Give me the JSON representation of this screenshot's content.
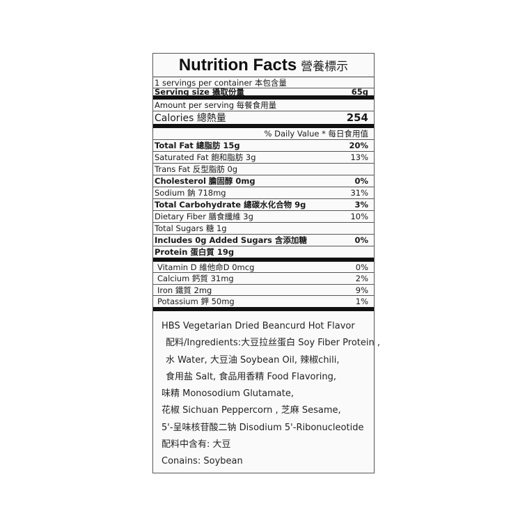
{
  "title": {
    "en": "Nutrition Facts",
    "zh": "營養標示"
  },
  "servings_per_container": "1 servings per container 本包含量",
  "serving_size": {
    "label": "Serving size 攝取份量",
    "value": "65g"
  },
  "amount_per_serving": "Amount per serving 每餐食用量",
  "calories": {
    "label": "Calories 總熱量",
    "value": "254"
  },
  "daily_value_header": "% Daily Value * 每日食用值",
  "nutrients": [
    {
      "label": "Total Fat 總脂肪 15g",
      "dv": "20%"
    },
    {
      "label": "Saturated Fat 飽和脂肪 3g",
      "dv": "13%"
    },
    {
      "label": "Trans Fat 反型脂肪 0g",
      "dv": ""
    },
    {
      "label": "Cholesterol 膽固醇 0mg",
      "dv": "0%"
    },
    {
      "label": "Sodium 鈉 718mg",
      "dv": "31%"
    },
    {
      "label": "Total Carbohydrate 總碳水化合物 9g",
      "dv": "3%"
    },
    {
      "label": "Dietary Fiber 膳食纖維 3g",
      "dv": "10%"
    },
    {
      "label": "Total Sugars 糖 1g",
      "dv": ""
    },
    {
      "label": "Includes 0g Added Sugars 含添加糖",
      "dv": "0%"
    },
    {
      "label": "Protein 蛋白質 19g",
      "dv": ""
    }
  ],
  "minerals": [
    {
      "label": "Vitamin D 維他命D 0mcg",
      "dv": "0%"
    },
    {
      "label": "Calcium 鈣質 31mg",
      "dv": "2%"
    },
    {
      "label": "Iron 鐵質 2mg",
      "dv": "9%"
    },
    {
      "label": "Potassium 鉀 50mg",
      "dv": "1%"
    }
  ],
  "ingredients": [
    "HBS Vegetarian Dried Beancurd Hot Flavor",
    "配料/Ingredients:大豆拉丝蛋白 Soy Fiber Protein ,",
    "水 Water, 大豆油 Soybean Oil, 辣椒chili,",
    "食用盐 Salt, 食品用香精 Food Flavoring,",
    "味精 Monosodium Glutamate,",
    "花椒 Sichuan  Peppercorn , 芝麻 Sesame,",
    "5'-呈味核苷酸二钠 Disodium 5'-Ribonucleotide",
    "配料中含有: 大豆",
    "Conains: Soybean"
  ]
}
